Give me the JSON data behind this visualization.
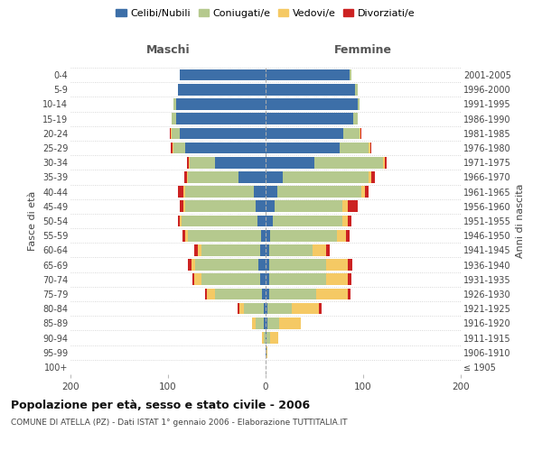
{
  "age_groups": [
    "100+",
    "95-99",
    "90-94",
    "85-89",
    "80-84",
    "75-79",
    "70-74",
    "65-69",
    "60-64",
    "55-59",
    "50-54",
    "45-49",
    "40-44",
    "35-39",
    "30-34",
    "25-29",
    "20-24",
    "15-19",
    "10-14",
    "5-9",
    "0-4"
  ],
  "birth_years": [
    "≤ 1905",
    "1906-1910",
    "1911-1915",
    "1916-1920",
    "1921-1925",
    "1926-1930",
    "1931-1935",
    "1936-1940",
    "1941-1945",
    "1946-1950",
    "1951-1955",
    "1956-1960",
    "1961-1965",
    "1966-1970",
    "1971-1975",
    "1976-1980",
    "1981-1985",
    "1986-1990",
    "1991-1995",
    "1996-2000",
    "2001-2005"
  ],
  "males": {
    "celibi": [
      0,
      0,
      0,
      2,
      2,
      4,
      6,
      7,
      6,
      5,
      8,
      10,
      12,
      28,
      52,
      82,
      88,
      92,
      92,
      90,
      88
    ],
    "coniugati": [
      0,
      0,
      2,
      8,
      20,
      48,
      60,
      65,
      60,
      75,
      78,
      72,
      70,
      52,
      26,
      12,
      8,
      4,
      2,
      0,
      0
    ],
    "vedovi": [
      0,
      0,
      2,
      4,
      5,
      8,
      7,
      4,
      3,
      2,
      2,
      2,
      2,
      1,
      1,
      1,
      1,
      0,
      0,
      0,
      0
    ],
    "divorziati": [
      0,
      0,
      0,
      0,
      2,
      2,
      2,
      4,
      4,
      3,
      2,
      4,
      6,
      2,
      2,
      2,
      1,
      0,
      0,
      0,
      0
    ]
  },
  "females": {
    "nubili": [
      0,
      1,
      1,
      2,
      2,
      4,
      4,
      4,
      4,
      5,
      7,
      9,
      12,
      18,
      50,
      76,
      80,
      90,
      94,
      92,
      86
    ],
    "coniugate": [
      0,
      0,
      4,
      12,
      25,
      48,
      58,
      58,
      44,
      68,
      72,
      70,
      86,
      88,
      70,
      30,
      16,
      4,
      2,
      2,
      2
    ],
    "vedove": [
      0,
      1,
      8,
      22,
      28,
      32,
      22,
      22,
      14,
      9,
      5,
      5,
      4,
      2,
      2,
      1,
      1,
      0,
      0,
      0,
      0
    ],
    "divorziate": [
      0,
      0,
      0,
      0,
      2,
      3,
      4,
      5,
      4,
      4,
      4,
      10,
      4,
      4,
      2,
      1,
      1,
      0,
      0,
      0,
      0
    ]
  },
  "colors": {
    "celibi": "#3d6fa8",
    "coniugati": "#b5c98e",
    "vedovi": "#f5c964",
    "divorziati": "#cc2222"
  },
  "xlim": 200,
  "xtick_positions": [
    -200,
    -100,
    0,
    100,
    200
  ],
  "title": "Popolazione per età, sesso e stato civile - 2006",
  "subtitle": "COMUNE DI ATELLA (PZ) - Dati ISTAT 1° gennaio 2006 - Elaborazione TUTTITALIA.IT",
  "ylabel_left": "Fasce di età",
  "ylabel_right": "Anni di nascita",
  "xlabel_maschi": "Maschi",
  "xlabel_femmine": "Femmine",
  "legend_labels": [
    "Celibi/Nubili",
    "Coniugati/e",
    "Vedovi/e",
    "Divorziati/e"
  ],
  "background_color": "#ffffff",
  "grid_color": "#cccccc",
  "bar_height": 0.78
}
